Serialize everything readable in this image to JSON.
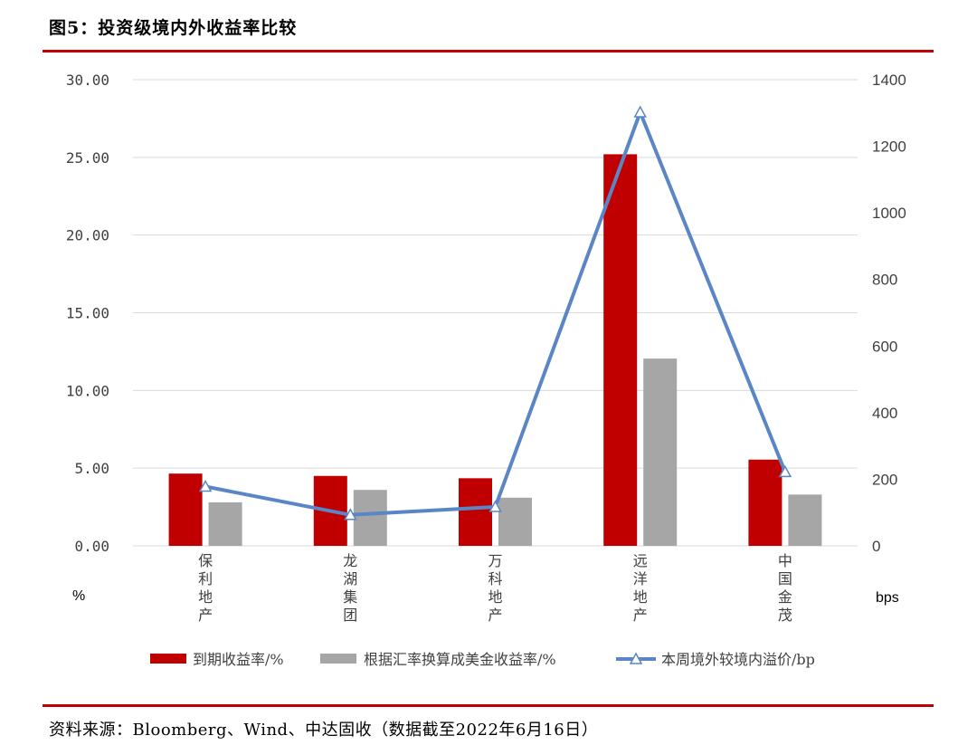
{
  "figure": {
    "title": "图5：投资级境内外收益率比较",
    "source": "资料来源：Bloomberg、Wind、中达固收（数据截至2022年6月16日）"
  },
  "colors": {
    "rule": "#c00000",
    "series1": "#c00000",
    "series2": "#a6a6a6",
    "series3": "#5b86c5",
    "grid": "#d9d9d9"
  },
  "chart_data": {
    "type": "bar",
    "categories": [
      "保利地产",
      "龙湖集团",
      "万科地产",
      "远洋地产",
      "中国金茂"
    ],
    "series": [
      {
        "name": "到期收益率/%",
        "type": "bar",
        "axis": "left",
        "values": [
          4.65,
          4.5,
          4.35,
          25.2,
          5.55
        ]
      },
      {
        "name": "根据汇率换算成美金收益率/%",
        "type": "bar",
        "axis": "left",
        "values": [
          2.8,
          3.6,
          3.1,
          12.05,
          3.3
        ]
      },
      {
        "name": "本周境外较境内溢价/bp",
        "type": "line",
        "axis": "right",
        "values": [
          178,
          93,
          117,
          1302,
          222
        ]
      }
    ],
    "ylabel": "%",
    "y2label": "bps",
    "ylim": [
      0,
      30
    ],
    "y2lim": [
      0,
      1400
    ],
    "yticks": [
      "0.00",
      "5.00",
      "10.00",
      "15.00",
      "20.00",
      "25.00",
      "30.00"
    ],
    "y2ticks": [
      "0",
      "200",
      "400",
      "600",
      "800",
      "1000",
      "1200",
      "1400"
    ],
    "grid": true,
    "legend": "bottom"
  }
}
